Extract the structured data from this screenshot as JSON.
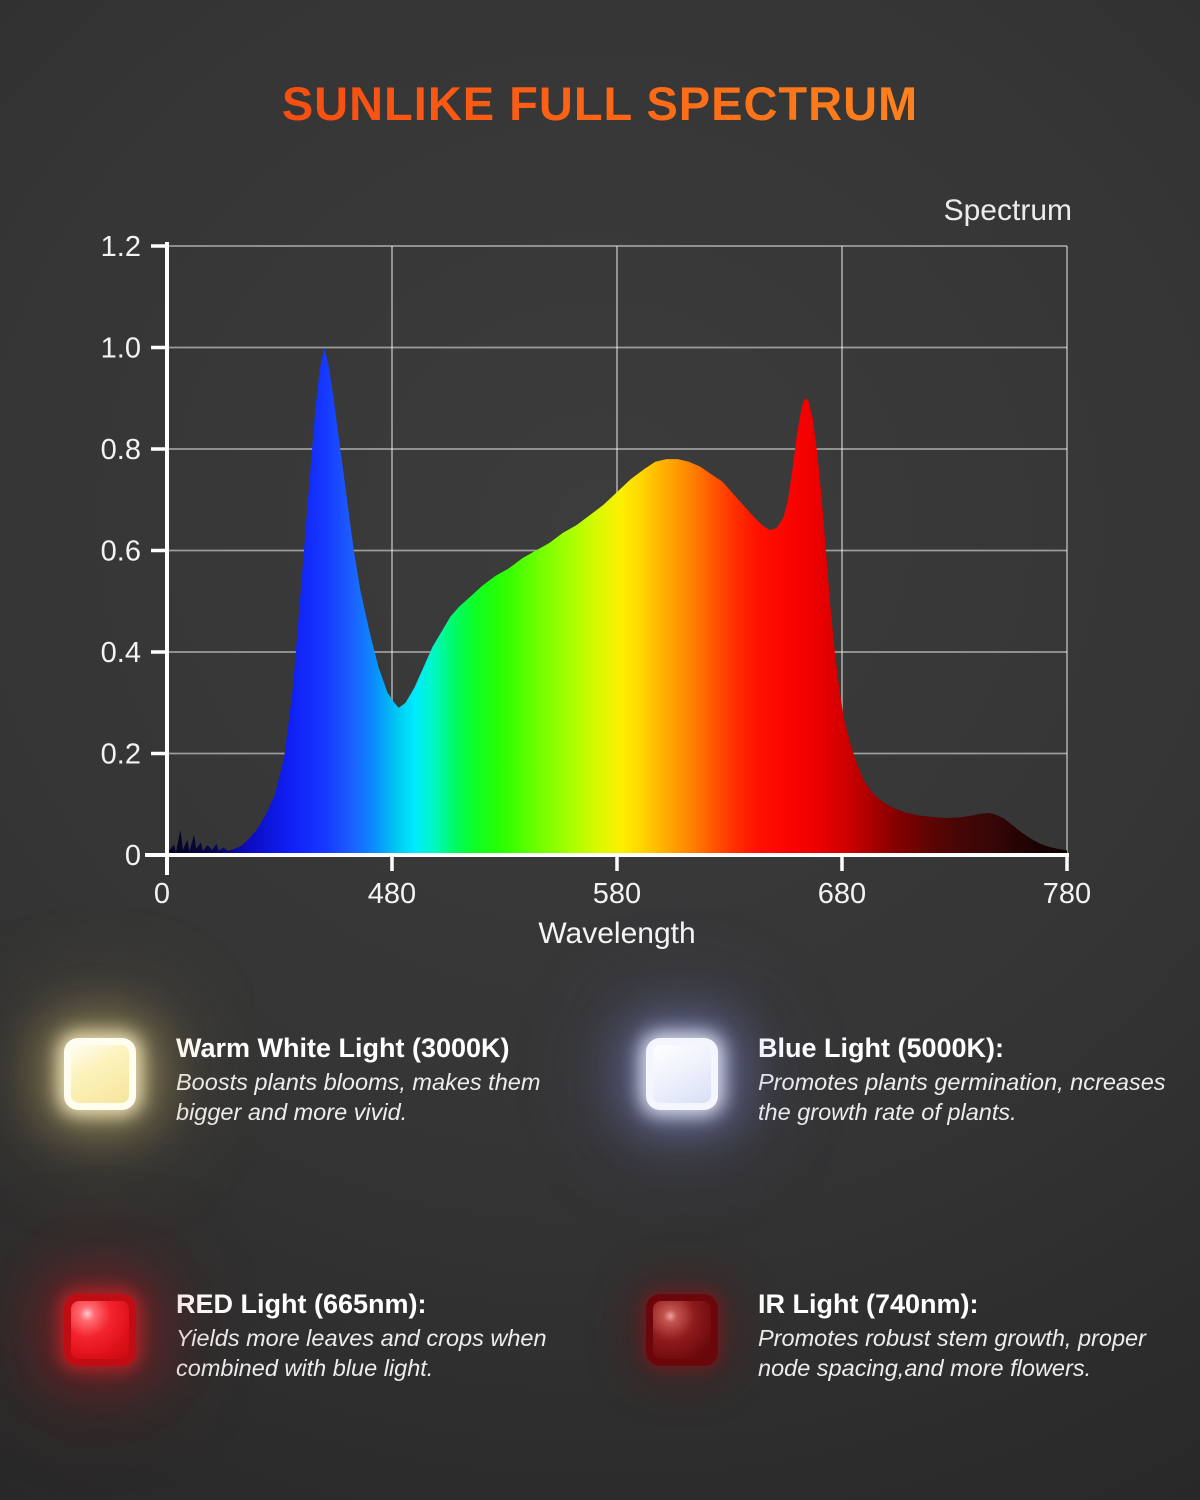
{
  "page": {
    "title": "SUNLIKE FULL SPECTRUM"
  },
  "chart": {
    "corner_label": "Spectrum",
    "x_axis_title": "Wavelength"
  },
  "chart_data": {
    "type": "area",
    "title": "Spectrum",
    "xlabel": "Wavelength",
    "ylabel": "",
    "x_range": [
      380,
      780
    ],
    "y_range": [
      0,
      1.2
    ],
    "grid": true,
    "legend_position": "top-right",
    "y_ticks": [
      0,
      0.2,
      0.4,
      0.6,
      0.8,
      1.0,
      1.2
    ],
    "y_tick_labels": [
      "0",
      "0.2",
      "0.4",
      "0.6",
      "0.8",
      "1.0",
      "1.2"
    ],
    "x_ticks": [
      {
        "value": 380,
        "label": "0"
      },
      {
        "value": 480,
        "label": "480"
      },
      {
        "value": 580,
        "label": "580"
      },
      {
        "value": 680,
        "label": "680"
      },
      {
        "value": 780,
        "label": "780"
      }
    ],
    "x_gridlines": [
      480,
      580,
      680,
      780
    ],
    "points": [
      [
        380,
        0.004
      ],
      [
        383,
        0.02
      ],
      [
        384,
        0.006
      ],
      [
        386,
        0.05
      ],
      [
        387,
        0.01
      ],
      [
        389,
        0.03
      ],
      [
        390,
        0.008
      ],
      [
        392,
        0.04
      ],
      [
        393,
        0.012
      ],
      [
        395,
        0.025
      ],
      [
        396,
        0.008
      ],
      [
        398,
        0.02
      ],
      [
        400,
        0.01
      ],
      [
        402,
        0.022
      ],
      [
        403,
        0.008
      ],
      [
        405,
        0.015
      ],
      [
        407,
        0.008
      ],
      [
        410,
        0.012
      ],
      [
        413,
        0.018
      ],
      [
        416,
        0.03
      ],
      [
        420,
        0.05
      ],
      [
        424,
        0.08
      ],
      [
        428,
        0.12
      ],
      [
        432,
        0.19
      ],
      [
        436,
        0.33
      ],
      [
        440,
        0.55
      ],
      [
        443,
        0.72
      ],
      [
        446,
        0.88
      ],
      [
        448,
        0.96
      ],
      [
        450,
        1.0
      ],
      [
        452,
        0.96
      ],
      [
        454,
        0.9
      ],
      [
        457,
        0.8
      ],
      [
        460,
        0.7
      ],
      [
        463,
        0.6
      ],
      [
        466,
        0.52
      ],
      [
        470,
        0.44
      ],
      [
        474,
        0.37
      ],
      [
        478,
        0.32
      ],
      [
        481,
        0.3
      ],
      [
        483,
        0.29
      ],
      [
        486,
        0.3
      ],
      [
        490,
        0.33
      ],
      [
        494,
        0.37
      ],
      [
        498,
        0.41
      ],
      [
        502,
        0.44
      ],
      [
        506,
        0.47
      ],
      [
        510,
        0.49
      ],
      [
        515,
        0.51
      ],
      [
        520,
        0.53
      ],
      [
        526,
        0.55
      ],
      [
        532,
        0.565
      ],
      [
        538,
        0.585
      ],
      [
        544,
        0.6
      ],
      [
        550,
        0.615
      ],
      [
        556,
        0.635
      ],
      [
        562,
        0.65
      ],
      [
        568,
        0.67
      ],
      [
        574,
        0.69
      ],
      [
        580,
        0.715
      ],
      [
        586,
        0.74
      ],
      [
        592,
        0.76
      ],
      [
        597,
        0.775
      ],
      [
        602,
        0.78
      ],
      [
        607,
        0.78
      ],
      [
        612,
        0.775
      ],
      [
        617,
        0.765
      ],
      [
        622,
        0.75
      ],
      [
        627,
        0.735
      ],
      [
        632,
        0.71
      ],
      [
        637,
        0.685
      ],
      [
        641,
        0.665
      ],
      [
        645,
        0.648
      ],
      [
        648,
        0.64
      ],
      [
        651,
        0.645
      ],
      [
        654,
        0.665
      ],
      [
        656,
        0.7
      ],
      [
        658,
        0.76
      ],
      [
        660,
        0.83
      ],
      [
        662,
        0.88
      ],
      [
        663,
        0.895
      ],
      [
        664,
        0.9
      ],
      [
        665,
        0.895
      ],
      [
        667,
        0.86
      ],
      [
        669,
        0.79
      ],
      [
        671,
        0.7
      ],
      [
        673,
        0.59
      ],
      [
        675,
        0.48
      ],
      [
        677,
        0.39
      ],
      [
        679,
        0.32
      ],
      [
        681,
        0.265
      ],
      [
        684,
        0.215
      ],
      [
        687,
        0.175
      ],
      [
        690,
        0.145
      ],
      [
        694,
        0.12
      ],
      [
        698,
        0.105
      ],
      [
        703,
        0.092
      ],
      [
        708,
        0.084
      ],
      [
        714,
        0.078
      ],
      [
        720,
        0.075
      ],
      [
        726,
        0.073
      ],
      [
        732,
        0.074
      ],
      [
        737,
        0.077
      ],
      [
        741,
        0.081
      ],
      [
        745,
        0.083
      ],
      [
        748,
        0.08
      ],
      [
        752,
        0.072
      ],
      [
        756,
        0.058
      ],
      [
        760,
        0.044
      ],
      [
        764,
        0.032
      ],
      [
        768,
        0.022
      ],
      [
        772,
        0.016
      ],
      [
        776,
        0.012
      ],
      [
        780,
        0.009
      ]
    ],
    "gradient_stops": [
      {
        "wavelength": 380,
        "color": "#03031c"
      },
      {
        "wavelength": 400,
        "color": "#07074e"
      },
      {
        "wavelength": 415,
        "color": "#0b0bbe"
      },
      {
        "wavelength": 435,
        "color": "#0f1ff5"
      },
      {
        "wavelength": 450,
        "color": "#1638ff"
      },
      {
        "wavelength": 462,
        "color": "#1d5eff"
      },
      {
        "wavelength": 472,
        "color": "#0b8cff"
      },
      {
        "wavelength": 482,
        "color": "#00c8f0"
      },
      {
        "wavelength": 490,
        "color": "#00eaff"
      },
      {
        "wavelength": 498,
        "color": "#00f7c8"
      },
      {
        "wavelength": 508,
        "color": "#00fb62"
      },
      {
        "wavelength": 518,
        "color": "#10ff1f"
      },
      {
        "wavelength": 530,
        "color": "#2dff00"
      },
      {
        "wavelength": 545,
        "color": "#70ff00"
      },
      {
        "wavelength": 560,
        "color": "#aaff00"
      },
      {
        "wavelength": 572,
        "color": "#dcf800"
      },
      {
        "wavelength": 582,
        "color": "#fdf000"
      },
      {
        "wavelength": 590,
        "color": "#ffd800"
      },
      {
        "wavelength": 598,
        "color": "#ffbb00"
      },
      {
        "wavelength": 606,
        "color": "#ff9d00"
      },
      {
        "wavelength": 614,
        "color": "#ff7d00"
      },
      {
        "wavelength": 622,
        "color": "#ff5a00"
      },
      {
        "wavelength": 632,
        "color": "#ff3000"
      },
      {
        "wavelength": 642,
        "color": "#ff1200"
      },
      {
        "wavelength": 655,
        "color": "#fb0500"
      },
      {
        "wavelength": 668,
        "color": "#ee0000"
      },
      {
        "wavelength": 680,
        "color": "#d40000"
      },
      {
        "wavelength": 692,
        "color": "#ad0000"
      },
      {
        "wavelength": 704,
        "color": "#860000"
      },
      {
        "wavelength": 718,
        "color": "#600404"
      },
      {
        "wavelength": 732,
        "color": "#470606"
      },
      {
        "wavelength": 746,
        "color": "#380707"
      },
      {
        "wavelength": 758,
        "color": "#260404"
      },
      {
        "wavelength": 768,
        "color": "#190202"
      },
      {
        "wavelength": 780,
        "color": "#0e0101"
      }
    ]
  },
  "legend": {
    "items": [
      {
        "title": "Warm White Light (3000K)",
        "desc_line1": "Boosts plants blooms, makes them",
        "desc_line2": "bigger and more vivid."
      },
      {
        "title": "Blue Light (5000K):",
        "desc_line1": "Promotes plants germination, ncreases",
        "desc_line2": "the growth rate of plants."
      },
      {
        "title": "RED Light (665nm):",
        "desc_line1": "Yields more leaves and crops when",
        "desc_line2": "combined with blue light."
      },
      {
        "title": "IR Light (740nm):",
        "desc_line1": "Promotes robust stem growth, proper",
        "desc_line2": "node spacing,and more flowers."
      }
    ]
  },
  "colors": {
    "title_gradient_start": "#f23a10",
    "title_gradient_end": "#ff9d25",
    "background": "#343434",
    "axis": "#ffffff",
    "grid": "#aaaaaa"
  }
}
